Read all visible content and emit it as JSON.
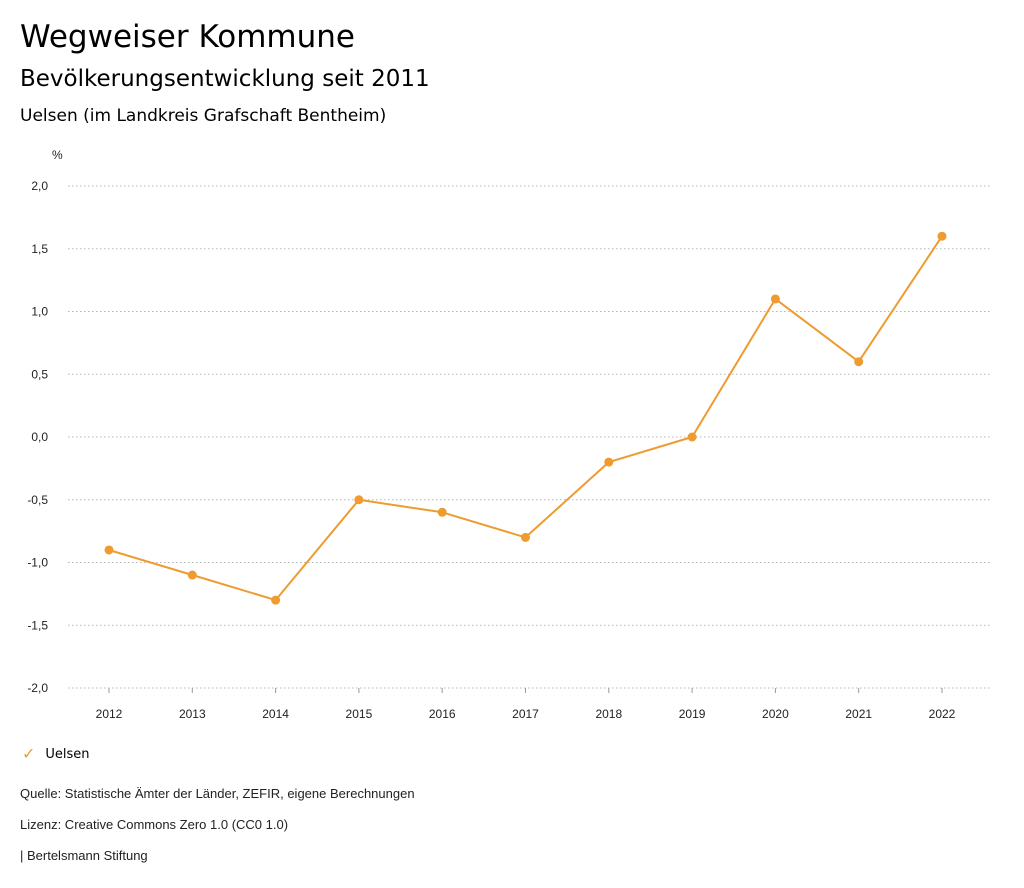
{
  "header": {
    "title": "Wegweiser Kommune",
    "subtitle": "Bevölkerungsentwicklung seit 2011",
    "region": "Uelsen (im Landkreis Grafschaft Bentheim)"
  },
  "chart_data": {
    "type": "line",
    "ylabel": "%",
    "ylim": [
      -2.0,
      2.0
    ],
    "yticks": [
      "2,0",
      "1,5",
      "1,0",
      "0,5",
      "0,0",
      "-0,5",
      "-1,0",
      "-1,5",
      "-2,0"
    ],
    "ytick_values": [
      2.0,
      1.5,
      1.0,
      0.5,
      0.0,
      -0.5,
      -1.0,
      -1.5,
      -2.0
    ],
    "categories": [
      "2012",
      "2013",
      "2014",
      "2015",
      "2016",
      "2017",
      "2018",
      "2019",
      "2020",
      "2021",
      "2022"
    ],
    "series": [
      {
        "name": "Uelsen",
        "color": "#ee9b30",
        "values": [
          -0.9,
          -1.1,
          -1.3,
          -0.5,
          -0.6,
          -0.8,
          -0.2,
          0.0,
          1.1,
          0.6,
          1.6
        ]
      }
    ],
    "grid": true,
    "legend": "bottom-left"
  },
  "legend": {
    "check_icon": "✓",
    "label": "Uelsen"
  },
  "footer": {
    "source": "Quelle: Statistische Ämter der Länder, ZEFIR, eigene Berechnungen",
    "license": "Lizenz: Creative Commons Zero 1.0 (CC0 1.0)",
    "credit": "| Bertelsmann Stiftung"
  }
}
